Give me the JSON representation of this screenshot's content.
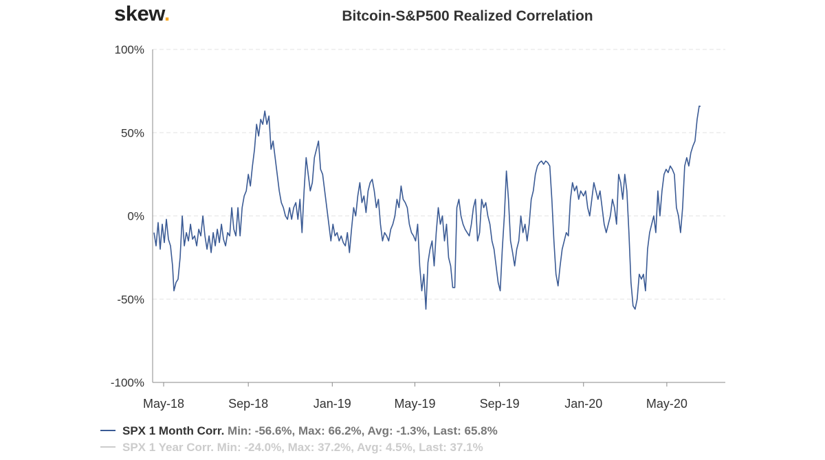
{
  "header": {
    "logo_text": "skew",
    "logo_dot": "."
  },
  "chart_data": {
    "type": "line",
    "title": "Bitcoin-S&P500 Realized Correlation",
    "ylim": [
      -100,
      100
    ],
    "y_ticks": [
      {
        "value": 100,
        "label": "100%"
      },
      {
        "value": 50,
        "label": "50%"
      },
      {
        "value": 0,
        "label": "0%"
      },
      {
        "value": -50,
        "label": "-50%"
      },
      {
        "value": -100,
        "label": "-100%"
      }
    ],
    "xlim": [
      "2018-04-15",
      "2020-07-25"
    ],
    "x_ticks": [
      {
        "date": "2018-05-01",
        "label": "May-18"
      },
      {
        "date": "2018-09-01",
        "label": "Sep-18"
      },
      {
        "date": "2019-01-01",
        "label": "Jan-19"
      },
      {
        "date": "2019-05-01",
        "label": "May-19"
      },
      {
        "date": "2019-09-01",
        "label": "Sep-19"
      },
      {
        "date": "2020-01-01",
        "label": "Jan-20"
      },
      {
        "date": "2020-05-01",
        "label": "May-20"
      }
    ],
    "grid": "horizontal-dashed",
    "legend_position": "bottom-left",
    "series": [
      {
        "name": "SPX 1 Month Corr.",
        "stats": "Min: -56.6%, Max: 66.2%, Avg: -1.3%, Last: 65.8%",
        "color": "#3a5a94",
        "visible": true,
        "points": [
          [
            "2018-04-17",
            -10
          ],
          [
            "2018-04-20",
            -18
          ],
          [
            "2018-04-23",
            -4
          ],
          [
            "2018-04-26",
            -20
          ],
          [
            "2018-04-29",
            -5
          ],
          [
            "2018-05-02",
            -16
          ],
          [
            "2018-05-05",
            -2
          ],
          [
            "2018-05-08",
            -14
          ],
          [
            "2018-05-11",
            -18
          ],
          [
            "2018-05-14",
            -30
          ],
          [
            "2018-05-16",
            -45
          ],
          [
            "2018-05-19",
            -40
          ],
          [
            "2018-05-22",
            -38
          ],
          [
            "2018-05-25",
            -25
          ],
          [
            "2018-05-28",
            0
          ],
          [
            "2018-05-31",
            -18
          ],
          [
            "2018-06-03",
            -10
          ],
          [
            "2018-06-06",
            -15
          ],
          [
            "2018-06-09",
            -5
          ],
          [
            "2018-06-12",
            -14
          ],
          [
            "2018-06-15",
            -12
          ],
          [
            "2018-06-18",
            -18
          ],
          [
            "2018-06-21",
            -8
          ],
          [
            "2018-06-24",
            -12
          ],
          [
            "2018-06-27",
            0
          ],
          [
            "2018-06-30",
            -12
          ],
          [
            "2018-07-03",
            -20
          ],
          [
            "2018-07-06",
            -12
          ],
          [
            "2018-07-09",
            -22
          ],
          [
            "2018-07-12",
            -10
          ],
          [
            "2018-07-15",
            -18
          ],
          [
            "2018-07-18",
            -8
          ],
          [
            "2018-07-21",
            -16
          ],
          [
            "2018-07-24",
            -5
          ],
          [
            "2018-07-27",
            -14
          ],
          [
            "2018-07-30",
            -18
          ],
          [
            "2018-08-02",
            -10
          ],
          [
            "2018-08-05",
            -12
          ],
          [
            "2018-08-08",
            5
          ],
          [
            "2018-08-11",
            -8
          ],
          [
            "2018-08-14",
            -12
          ],
          [
            "2018-08-17",
            5
          ],
          [
            "2018-08-20",
            -12
          ],
          [
            "2018-08-23",
            5
          ],
          [
            "2018-08-26",
            12
          ],
          [
            "2018-08-29",
            15
          ],
          [
            "2018-09-01",
            25
          ],
          [
            "2018-09-04",
            18
          ],
          [
            "2018-09-07",
            30
          ],
          [
            "2018-09-10",
            40
          ],
          [
            "2018-09-13",
            55
          ],
          [
            "2018-09-16",
            48
          ],
          [
            "2018-09-19",
            58
          ],
          [
            "2018-09-22",
            55
          ],
          [
            "2018-09-25",
            63
          ],
          [
            "2018-09-28",
            55
          ],
          [
            "2018-10-01",
            60
          ],
          [
            "2018-10-04",
            40
          ],
          [
            "2018-10-07",
            45
          ],
          [
            "2018-10-10",
            35
          ],
          [
            "2018-10-13",
            25
          ],
          [
            "2018-10-16",
            15
          ],
          [
            "2018-10-19",
            8
          ],
          [
            "2018-10-22",
            5
          ],
          [
            "2018-10-25",
            0
          ],
          [
            "2018-10-28",
            -2
          ],
          [
            "2018-10-31",
            5
          ],
          [
            "2018-11-03",
            -2
          ],
          [
            "2018-11-06",
            5
          ],
          [
            "2018-11-09",
            8
          ],
          [
            "2018-11-12",
            -2
          ],
          [
            "2018-11-15",
            10
          ],
          [
            "2018-11-18",
            -10
          ],
          [
            "2018-11-21",
            15
          ],
          [
            "2018-11-24",
            35
          ],
          [
            "2018-11-27",
            25
          ],
          [
            "2018-11-30",
            15
          ],
          [
            "2018-12-03",
            20
          ],
          [
            "2018-12-06",
            35
          ],
          [
            "2018-12-09",
            40
          ],
          [
            "2018-12-12",
            45
          ],
          [
            "2018-12-15",
            28
          ],
          [
            "2018-12-18",
            25
          ],
          [
            "2018-12-21",
            15
          ],
          [
            "2018-12-24",
            5
          ],
          [
            "2018-12-27",
            -5
          ],
          [
            "2018-12-30",
            -15
          ],
          [
            "2019-01-02",
            -5
          ],
          [
            "2019-01-05",
            -12
          ],
          [
            "2019-01-08",
            -10
          ],
          [
            "2019-01-11",
            -15
          ],
          [
            "2019-01-14",
            -12
          ],
          [
            "2019-01-17",
            -16
          ],
          [
            "2019-01-20",
            -18
          ],
          [
            "2019-01-23",
            -10
          ],
          [
            "2019-01-26",
            -22
          ],
          [
            "2019-01-29",
            -8
          ],
          [
            "2019-02-01",
            5
          ],
          [
            "2019-02-04",
            0
          ],
          [
            "2019-02-07",
            12
          ],
          [
            "2019-02-10",
            20
          ],
          [
            "2019-02-13",
            8
          ],
          [
            "2019-02-16",
            12
          ],
          [
            "2019-02-19",
            2
          ],
          [
            "2019-02-22",
            15
          ],
          [
            "2019-02-25",
            20
          ],
          [
            "2019-02-28",
            22
          ],
          [
            "2019-03-03",
            15
          ],
          [
            "2019-03-06",
            5
          ],
          [
            "2019-03-09",
            10
          ],
          [
            "2019-03-12",
            -5
          ],
          [
            "2019-03-15",
            -15
          ],
          [
            "2019-03-18",
            -10
          ],
          [
            "2019-03-21",
            -12
          ],
          [
            "2019-03-24",
            -15
          ],
          [
            "2019-03-27",
            -8
          ],
          [
            "2019-03-30",
            -5
          ],
          [
            "2019-04-02",
            0
          ],
          [
            "2019-04-05",
            10
          ],
          [
            "2019-04-08",
            5
          ],
          [
            "2019-04-11",
            18
          ],
          [
            "2019-04-14",
            10
          ],
          [
            "2019-04-17",
            8
          ],
          [
            "2019-04-20",
            5
          ],
          [
            "2019-04-23",
            -5
          ],
          [
            "2019-04-26",
            -10
          ],
          [
            "2019-04-29",
            -12
          ],
          [
            "2019-05-02",
            -15
          ],
          [
            "2019-05-05",
            -5
          ],
          [
            "2019-05-08",
            -30
          ],
          [
            "2019-05-11",
            -45
          ],
          [
            "2019-05-14",
            -35
          ],
          [
            "2019-05-17",
            -56
          ],
          [
            "2019-05-20",
            -28
          ],
          [
            "2019-05-23",
            -20
          ],
          [
            "2019-05-26",
            -15
          ],
          [
            "2019-05-29",
            -30
          ],
          [
            "2019-06-01",
            -10
          ],
          [
            "2019-06-04",
            5
          ],
          [
            "2019-06-07",
            -5
          ],
          [
            "2019-06-10",
            0
          ],
          [
            "2019-06-13",
            -15
          ],
          [
            "2019-06-16",
            -5
          ],
          [
            "2019-06-19",
            -25
          ],
          [
            "2019-06-22",
            -30
          ],
          [
            "2019-06-25",
            -43
          ],
          [
            "2019-06-28",
            -43
          ],
          [
            "2019-07-01",
            5
          ],
          [
            "2019-07-04",
            10
          ],
          [
            "2019-07-07",
            0
          ],
          [
            "2019-07-10",
            -5
          ],
          [
            "2019-07-13",
            -8
          ],
          [
            "2019-07-16",
            -10
          ],
          [
            "2019-07-19",
            -12
          ],
          [
            "2019-07-22",
            -5
          ],
          [
            "2019-07-25",
            5
          ],
          [
            "2019-07-28",
            10
          ],
          [
            "2019-07-31",
            -15
          ],
          [
            "2019-08-03",
            -10
          ],
          [
            "2019-08-06",
            10
          ],
          [
            "2019-08-09",
            5
          ],
          [
            "2019-08-12",
            8
          ],
          [
            "2019-08-15",
            0
          ],
          [
            "2019-08-18",
            -5
          ],
          [
            "2019-08-21",
            -15
          ],
          [
            "2019-08-24",
            -20
          ],
          [
            "2019-08-27",
            -30
          ],
          [
            "2019-08-30",
            -40
          ],
          [
            "2019-09-02",
            -45
          ],
          [
            "2019-09-05",
            -20
          ],
          [
            "2019-09-08",
            0
          ],
          [
            "2019-09-11",
            27
          ],
          [
            "2019-09-14",
            10
          ],
          [
            "2019-09-17",
            -15
          ],
          [
            "2019-09-20",
            -22
          ],
          [
            "2019-09-23",
            -30
          ],
          [
            "2019-09-26",
            -20
          ],
          [
            "2019-09-29",
            -15
          ],
          [
            "2019-10-02",
            0
          ],
          [
            "2019-10-05",
            -10
          ],
          [
            "2019-10-08",
            -5
          ],
          [
            "2019-10-11",
            -15
          ],
          [
            "2019-10-14",
            -5
          ],
          [
            "2019-10-17",
            10
          ],
          [
            "2019-10-20",
            15
          ],
          [
            "2019-10-23",
            25
          ],
          [
            "2019-10-26",
            30
          ],
          [
            "2019-10-29",
            32
          ],
          [
            "2019-11-01",
            33
          ],
          [
            "2019-11-04",
            31
          ],
          [
            "2019-11-07",
            33
          ],
          [
            "2019-11-10",
            32
          ],
          [
            "2019-11-13",
            30
          ],
          [
            "2019-11-16",
            10
          ],
          [
            "2019-11-19",
            -15
          ],
          [
            "2019-11-22",
            -35
          ],
          [
            "2019-11-25",
            -42
          ],
          [
            "2019-11-28",
            -30
          ],
          [
            "2019-12-01",
            -20
          ],
          [
            "2019-12-04",
            -15
          ],
          [
            "2019-12-07",
            -10
          ],
          [
            "2019-12-10",
            -12
          ],
          [
            "2019-12-13",
            10
          ],
          [
            "2019-12-16",
            20
          ],
          [
            "2019-12-19",
            15
          ],
          [
            "2019-12-22",
            18
          ],
          [
            "2019-12-25",
            10
          ],
          [
            "2019-12-28",
            15
          ],
          [
            "2020-01-01",
            12
          ],
          [
            "2020-01-04",
            15
          ],
          [
            "2020-01-07",
            5
          ],
          [
            "2020-01-10",
            0
          ],
          [
            "2020-01-13",
            10
          ],
          [
            "2020-01-16",
            20
          ],
          [
            "2020-01-19",
            15
          ],
          [
            "2020-01-22",
            10
          ],
          [
            "2020-01-25",
            15
          ],
          [
            "2020-01-28",
            5
          ],
          [
            "2020-01-31",
            -5
          ],
          [
            "2020-02-03",
            -10
          ],
          [
            "2020-02-06",
            -5
          ],
          [
            "2020-02-09",
            0
          ],
          [
            "2020-02-12",
            10
          ],
          [
            "2020-02-15",
            5
          ],
          [
            "2020-02-18",
            -5
          ],
          [
            "2020-02-21",
            25
          ],
          [
            "2020-02-24",
            20
          ],
          [
            "2020-02-27",
            10
          ],
          [
            "2020-03-01",
            25
          ],
          [
            "2020-03-04",
            15
          ],
          [
            "2020-03-07",
            -10
          ],
          [
            "2020-03-10",
            -40
          ],
          [
            "2020-03-13",
            -54
          ],
          [
            "2020-03-16",
            -56
          ],
          [
            "2020-03-19",
            -50
          ],
          [
            "2020-03-22",
            -35
          ],
          [
            "2020-03-25",
            -38
          ],
          [
            "2020-03-28",
            -35
          ],
          [
            "2020-03-31",
            -45
          ],
          [
            "2020-04-03",
            -20
          ],
          [
            "2020-04-06",
            -10
          ],
          [
            "2020-04-09",
            -5
          ],
          [
            "2020-04-12",
            0
          ],
          [
            "2020-04-15",
            -10
          ],
          [
            "2020-04-18",
            15
          ],
          [
            "2020-04-21",
            0
          ],
          [
            "2020-04-24",
            15
          ],
          [
            "2020-04-27",
            25
          ],
          [
            "2020-04-30",
            28
          ],
          [
            "2020-05-03",
            26
          ],
          [
            "2020-05-06",
            30
          ],
          [
            "2020-05-09",
            28
          ],
          [
            "2020-05-12",
            25
          ],
          [
            "2020-05-15",
            5
          ],
          [
            "2020-05-18",
            0
          ],
          [
            "2020-05-21",
            -10
          ],
          [
            "2020-05-24",
            5
          ],
          [
            "2020-05-27",
            30
          ],
          [
            "2020-05-30",
            35
          ],
          [
            "2020-06-02",
            30
          ],
          [
            "2020-06-05",
            38
          ],
          [
            "2020-06-08",
            42
          ],
          [
            "2020-06-11",
            45
          ],
          [
            "2020-06-14",
            58
          ],
          [
            "2020-06-17",
            66
          ],
          [
            "2020-06-19",
            65.8
          ]
        ]
      },
      {
        "name": "SPX 1 Year Corr.",
        "stats": "Min: -24.0%, Max: 37.2%, Avg: 4.5%, Last: 37.1%",
        "color": "#cccccc",
        "visible": false
      }
    ]
  }
}
